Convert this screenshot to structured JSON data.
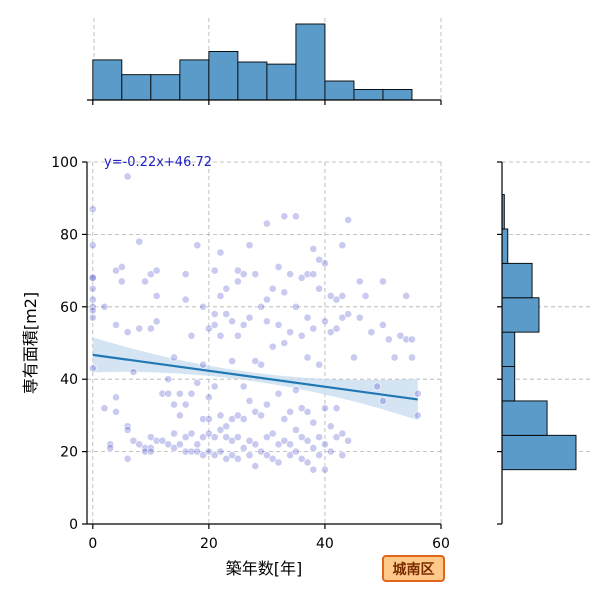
{
  "chart_data": [
    {
      "type": "scatter",
      "title": "",
      "xlabel": "築年数[年]",
      "ylabel": "専有面積[m2]",
      "xlim": [
        -1,
        60
      ],
      "ylim": [
        0,
        100
      ],
      "xticks": [
        0,
        20,
        40,
        60
      ],
      "yticks": [
        0,
        20,
        40,
        60,
        80,
        100
      ],
      "grid": true,
      "point_color": "#3a3fc4",
      "regression": {
        "label": "y=-0.22x+46.72",
        "slope": -0.22,
        "intercept": 46.72,
        "x_range": [
          0,
          56
        ],
        "line_color": "#1f77b4",
        "ci_color": "#c6dbef"
      },
      "points": [
        [
          0,
          87
        ],
        [
          0,
          77
        ],
        [
          0,
          68
        ],
        [
          0,
          68
        ],
        [
          0,
          65
        ],
        [
          0,
          62
        ],
        [
          0,
          60
        ],
        [
          0,
          59
        ],
        [
          0,
          57
        ],
        [
          0,
          43
        ],
        [
          2,
          60
        ],
        [
          2,
          32
        ],
        [
          3,
          22
        ],
        [
          3,
          21
        ],
        [
          4,
          70
        ],
        [
          4,
          55
        ],
        [
          4,
          35
        ],
        [
          4,
          31
        ],
        [
          5,
          71
        ],
        [
          5,
          67
        ],
        [
          6,
          96
        ],
        [
          6,
          53
        ],
        [
          6,
          27
        ],
        [
          6,
          26
        ],
        [
          6,
          18
        ],
        [
          7,
          42
        ],
        [
          7,
          23
        ],
        [
          8,
          78
        ],
        [
          8,
          54
        ],
        [
          8,
          22
        ],
        [
          9,
          67
        ],
        [
          9,
          21
        ],
        [
          9,
          20
        ],
        [
          10,
          69
        ],
        [
          10,
          54
        ],
        [
          10,
          24
        ],
        [
          10,
          21
        ],
        [
          10,
          20
        ],
        [
          11,
          70
        ],
        [
          11,
          63
        ],
        [
          11,
          56
        ],
        [
          11,
          23
        ],
        [
          12,
          36
        ],
        [
          12,
          23
        ],
        [
          13,
          40
        ],
        [
          13,
          36
        ],
        [
          13,
          22
        ],
        [
          14,
          46
        ],
        [
          14,
          33
        ],
        [
          14,
          25
        ],
        [
          14,
          21
        ],
        [
          15,
          36
        ],
        [
          15,
          30
        ],
        [
          15,
          22
        ],
        [
          16,
          69
        ],
        [
          16,
          62
        ],
        [
          16,
          33
        ],
        [
          16,
          24
        ],
        [
          16,
          20
        ],
        [
          17,
          52
        ],
        [
          17,
          36
        ],
        [
          17,
          25
        ],
        [
          17,
          20
        ],
        [
          18,
          77
        ],
        [
          18,
          39
        ],
        [
          18,
          22
        ],
        [
          18,
          20
        ],
        [
          19,
          60
        ],
        [
          19,
          44
        ],
        [
          19,
          29
        ],
        [
          19,
          24
        ],
        [
          19,
          19
        ],
        [
          20,
          54
        ],
        [
          20,
          35
        ],
        [
          20,
          29
        ],
        [
          20,
          25
        ],
        [
          20,
          20
        ],
        [
          21,
          70
        ],
        [
          21,
          58
        ],
        [
          21,
          55
        ],
        [
          21,
          38
        ],
        [
          21,
          24
        ],
        [
          21,
          19
        ],
        [
          22,
          75
        ],
        [
          22,
          63
        ],
        [
          22,
          52
        ],
        [
          22,
          30
        ],
        [
          22,
          26
        ],
        [
          22,
          20
        ],
        [
          23,
          65
        ],
        [
          23,
          58
        ],
        [
          23,
          27
        ],
        [
          23,
          24
        ],
        [
          23,
          18
        ],
        [
          24,
          56
        ],
        [
          24,
          45
        ],
        [
          24,
          29
        ],
        [
          24,
          23
        ],
        [
          24,
          19
        ],
        [
          25,
          70
        ],
        [
          25,
          67
        ],
        [
          25,
          52
        ],
        [
          25,
          30
        ],
        [
          25,
          24
        ],
        [
          25,
          18
        ],
        [
          26,
          69
        ],
        [
          26,
          55
        ],
        [
          26,
          38
        ],
        [
          26,
          29
        ],
        [
          26,
          21
        ],
        [
          27,
          77
        ],
        [
          27,
          57
        ],
        [
          27,
          34
        ],
        [
          27,
          23
        ],
        [
          27,
          19
        ],
        [
          28,
          69
        ],
        [
          28,
          45
        ],
        [
          28,
          31
        ],
        [
          28,
          22
        ],
        [
          28,
          16
        ],
        [
          29,
          60
        ],
        [
          29,
          44
        ],
        [
          29,
          30
        ],
        [
          29,
          20
        ],
        [
          30,
          83
        ],
        [
          30,
          62
        ],
        [
          30,
          56
        ],
        [
          30,
          33
        ],
        [
          30,
          24
        ],
        [
          30,
          19
        ],
        [
          31,
          65
        ],
        [
          31,
          49
        ],
        [
          31,
          25
        ],
        [
          31,
          18
        ],
        [
          32,
          71
        ],
        [
          32,
          55
        ],
        [
          32,
          36
        ],
        [
          32,
          22
        ],
        [
          32,
          17
        ],
        [
          33,
          85
        ],
        [
          33,
          64
        ],
        [
          33,
          50
        ],
        [
          33,
          29
        ],
        [
          33,
          23
        ],
        [
          34,
          69
        ],
        [
          34,
          53
        ],
        [
          34,
          31
        ],
        [
          34,
          22
        ],
        [
          34,
          19
        ],
        [
          35,
          85
        ],
        [
          35,
          60
        ],
        [
          35,
          37
        ],
        [
          35,
          26
        ],
        [
          35,
          20
        ],
        [
          36,
          68
        ],
        [
          36,
          52
        ],
        [
          36,
          32
        ],
        [
          36,
          24
        ],
        [
          36,
          18
        ],
        [
          37,
          69
        ],
        [
          37,
          57
        ],
        [
          37,
          46
        ],
        [
          37,
          31
        ],
        [
          37,
          23
        ],
        [
          37,
          17
        ],
        [
          38,
          76
        ],
        [
          38,
          69
        ],
        [
          38,
          54
        ],
        [
          38,
          28
        ],
        [
          38,
          21
        ],
        [
          38,
          15
        ],
        [
          39,
          73
        ],
        [
          39,
          65
        ],
        [
          39,
          44
        ],
        [
          39,
          24
        ],
        [
          39,
          19
        ],
        [
          40,
          72
        ],
        [
          40,
          56
        ],
        [
          40,
          32
        ],
        [
          40,
          22
        ],
        [
          40,
          15
        ],
        [
          41,
          63
        ],
        [
          41,
          53
        ],
        [
          41,
          27
        ],
        [
          41,
          20
        ],
        [
          42,
          62
        ],
        [
          42,
          54
        ],
        [
          42,
          32
        ],
        [
          42,
          24
        ],
        [
          43,
          77
        ],
        [
          43,
          63
        ],
        [
          43,
          57
        ],
        [
          43,
          25
        ],
        [
          43,
          19
        ],
        [
          44,
          84
        ],
        [
          44,
          58
        ],
        [
          44,
          23
        ],
        [
          45,
          46
        ],
        [
          46,
          67
        ],
        [
          46,
          57
        ],
        [
          47,
          63
        ],
        [
          48,
          53
        ],
        [
          49,
          38
        ],
        [
          50,
          67
        ],
        [
          50,
          55
        ],
        [
          50,
          34
        ],
        [
          51,
          51
        ],
        [
          52,
          46
        ],
        [
          53,
          52
        ],
        [
          54,
          63
        ],
        [
          54,
          51
        ],
        [
          55,
          51
        ],
        [
          55,
          46
        ],
        [
          56,
          36
        ],
        [
          56,
          30
        ]
      ]
    },
    {
      "type": "bar",
      "orientation": "vertical",
      "axis": "x",
      "bin_edges": [
        0,
        5,
        10,
        15,
        20,
        25,
        30,
        35,
        40,
        45,
        50,
        55
      ],
      "counts": [
        19,
        12,
        12,
        19,
        23,
        18,
        17,
        36,
        9,
        5,
        5
      ],
      "bar_color": "#5a9bc9"
    },
    {
      "type": "bar",
      "orientation": "horizontal",
      "axis": "y",
      "bin_edges": [
        15,
        24.5,
        34,
        43.5,
        53,
        62.5,
        72,
        81.5,
        91
      ],
      "counts": [
        64,
        39,
        11,
        11,
        32,
        26,
        5,
        2
      ],
      "bar_color": "#5a9bc9"
    }
  ],
  "badge": {
    "label": "城南区",
    "fill": "#ffc98a",
    "border": "#e0661c"
  }
}
